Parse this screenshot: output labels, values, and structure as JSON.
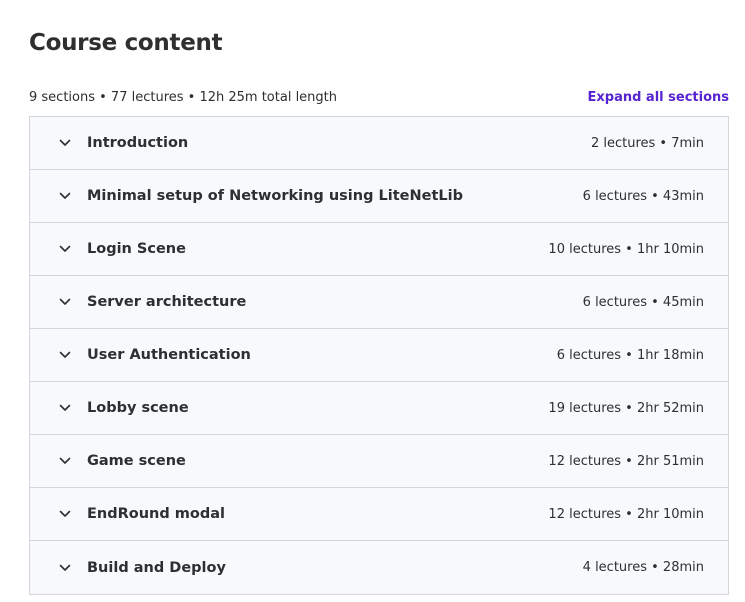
{
  "page": {
    "title": "Course content",
    "summary": "9 sections • 77 lectures • 12h 25m total length",
    "expand_all_label": "Expand all sections"
  },
  "colors": {
    "accent": "#5624d0",
    "section_bg": "#f7f9fa",
    "border": "#d1d7dc",
    "text": "#2d2f31"
  },
  "sections": [
    {
      "title": "Introduction",
      "meta": "2 lectures • 7min",
      "icon": "chevron-down-icon"
    },
    {
      "title": "Minimal setup of Networking using LiteNetLib",
      "meta": "6 lectures • 43min",
      "icon": "chevron-down-icon"
    },
    {
      "title": "Login Scene",
      "meta": "10 lectures • 1hr 10min",
      "icon": "chevron-down-icon"
    },
    {
      "title": "Server architecture",
      "meta": "6 lectures • 45min",
      "icon": "chevron-down-icon"
    },
    {
      "title": "User Authentication",
      "meta": "6 lectures • 1hr 18min",
      "icon": "chevron-down-icon"
    },
    {
      "title": "Lobby scene",
      "meta": "19 lectures • 2hr 52min",
      "icon": "chevron-down-icon"
    },
    {
      "title": "Game scene",
      "meta": "12 lectures • 2hr 51min",
      "icon": "chevron-down-icon"
    },
    {
      "title": "EndRound modal",
      "meta": "12 lectures • 2hr 10min",
      "icon": "chevron-down-icon"
    },
    {
      "title": "Build and Deploy",
      "meta": "4 lectures • 28min",
      "icon": "chevron-down-icon"
    }
  ]
}
